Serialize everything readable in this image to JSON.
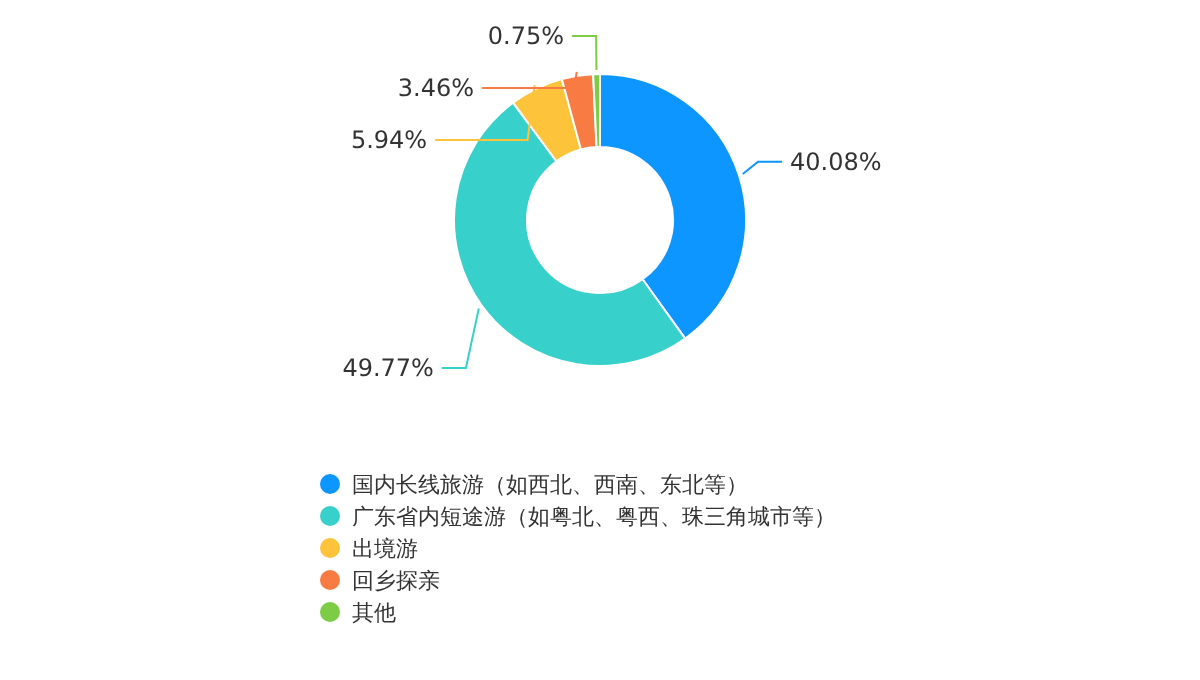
{
  "chart_data": {
    "type": "donut",
    "categories": [
      "国内长线旅游（如西北、西南、东北等）",
      "广东省内短途游（如粤北、粤西、珠三角城市等）",
      "出境游",
      "回乡探亲",
      "其他"
    ],
    "values": [
      40.08,
      49.77,
      5.94,
      3.46,
      0.75
    ],
    "value_labels": [
      "40.08%",
      "49.77%",
      "5.94%",
      "3.46%",
      "0.75%"
    ],
    "colors": [
      "#0d96ff",
      "#38d0ca",
      "#fcc33b",
      "#f97b44",
      "#7ccd45"
    ],
    "legend": "bottom"
  }
}
